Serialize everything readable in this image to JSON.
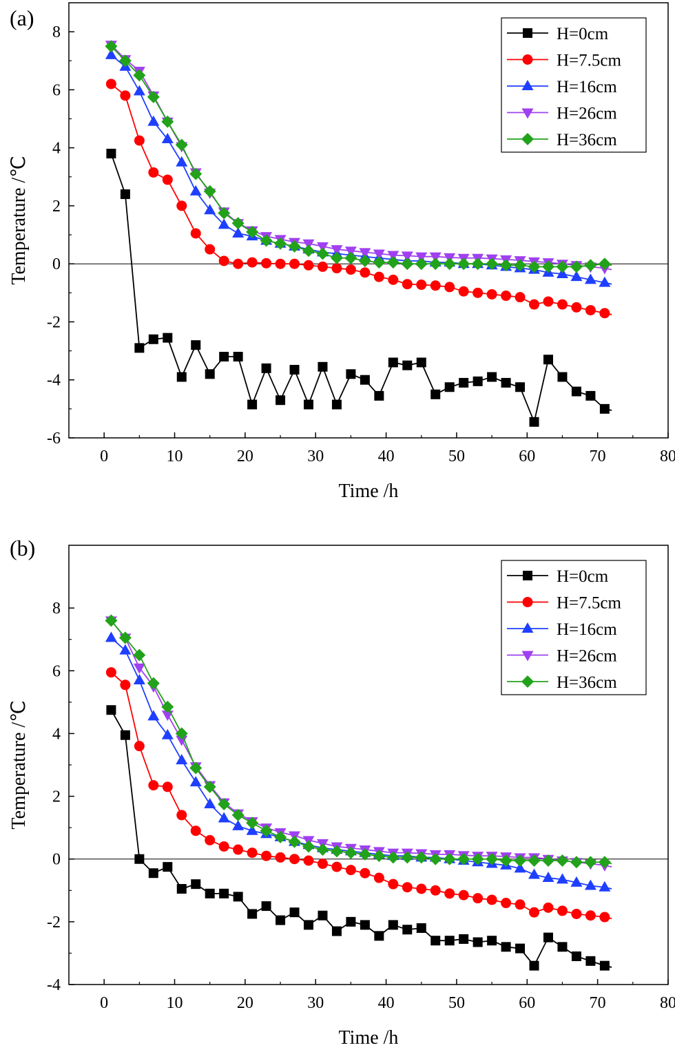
{
  "chart_data": [
    {
      "type": "line",
      "panel_label": "(a)",
      "xlabel": "Time /h",
      "ylabel": "Temperature /℃",
      "xlim": [
        -5,
        80
      ],
      "ylim": [
        -6,
        9
      ],
      "xticks": [
        0,
        10,
        20,
        30,
        40,
        50,
        60,
        70,
        80
      ],
      "yticks": [
        -6,
        -4,
        -2,
        0,
        2,
        4,
        6,
        8
      ],
      "zero_line": true,
      "legend_position": "top-right",
      "series": [
        {
          "name": "H=0cm",
          "color": "#000000",
          "marker": "square",
          "x": [
            1,
            3,
            5,
            7,
            9,
            11,
            13,
            15,
            17,
            19,
            21,
            23,
            25,
            27,
            29,
            31,
            33,
            35,
            37,
            39,
            41,
            43,
            45,
            47,
            49,
            51,
            53,
            55,
            57,
            59,
            61,
            63,
            65,
            67,
            69,
            71
          ],
          "y": [
            3.8,
            2.4,
            -2.9,
            -2.6,
            -2.55,
            -3.9,
            -2.8,
            -3.8,
            -3.2,
            -3.2,
            -4.85,
            -3.6,
            -4.7,
            -3.65,
            -4.85,
            -3.55,
            -4.85,
            -3.8,
            -4.0,
            -4.55,
            -3.4,
            -3.5,
            -3.4,
            -4.5,
            -4.25,
            -4.1,
            -4.05,
            -3.9,
            -4.1,
            -4.25,
            -5.45,
            -3.3,
            -3.9,
            -4.4,
            -4.55,
            -5.0
          ]
        },
        {
          "name": "H=7.5cm",
          "color": "#ff0000",
          "marker": "circle",
          "x": [
            1,
            3,
            5,
            7,
            9,
            11,
            13,
            15,
            17,
            19,
            21,
            23,
            25,
            27,
            29,
            31,
            33,
            35,
            37,
            39,
            41,
            43,
            45,
            47,
            49,
            51,
            53,
            55,
            57,
            59,
            61,
            63,
            65,
            67,
            69,
            71
          ],
          "y": [
            6.2,
            5.8,
            4.25,
            3.15,
            2.9,
            2.0,
            1.05,
            0.5,
            0.1,
            0.0,
            0.05,
            0.02,
            0.0,
            0.0,
            -0.05,
            -0.1,
            -0.15,
            -0.2,
            -0.3,
            -0.45,
            -0.55,
            -0.7,
            -0.72,
            -0.75,
            -0.8,
            -0.95,
            -1.0,
            -1.05,
            -1.1,
            -1.15,
            -1.4,
            -1.3,
            -1.4,
            -1.5,
            -1.6,
            -1.7
          ]
        },
        {
          "name": "H=16cm",
          "color": "#1f3fff",
          "marker": "triangle-up",
          "x": [
            1,
            3,
            5,
            7,
            9,
            11,
            13,
            15,
            17,
            19,
            21,
            23,
            25,
            27,
            29,
            31,
            33,
            35,
            37,
            39,
            41,
            43,
            45,
            47,
            49,
            51,
            53,
            55,
            57,
            59,
            61,
            63,
            65,
            67,
            69,
            71
          ],
          "y": [
            7.2,
            6.8,
            5.95,
            4.9,
            4.3,
            3.5,
            2.5,
            1.85,
            1.35,
            1.05,
            0.95,
            0.8,
            0.7,
            0.6,
            0.5,
            0.4,
            0.35,
            0.3,
            0.25,
            0.2,
            0.15,
            0.1,
            0.1,
            0.05,
            0.05,
            0.0,
            0.0,
            -0.05,
            -0.1,
            -0.15,
            -0.2,
            -0.3,
            -0.35,
            -0.45,
            -0.55,
            -0.65
          ]
        },
        {
          "name": "H=26cm",
          "color": "#a040f0",
          "marker": "triangle-down",
          "x": [
            1,
            3,
            5,
            7,
            9,
            11,
            13,
            15,
            17,
            19,
            21,
            23,
            25,
            27,
            29,
            31,
            33,
            35,
            37,
            39,
            41,
            43,
            45,
            47,
            49,
            51,
            53,
            55,
            57,
            59,
            61,
            63,
            65,
            67,
            69,
            71
          ],
          "y": [
            7.55,
            7.05,
            6.65,
            5.8,
            4.9,
            4.05,
            3.15,
            2.45,
            1.8,
            1.4,
            1.15,
            0.95,
            0.85,
            0.75,
            0.7,
            0.6,
            0.5,
            0.45,
            0.4,
            0.35,
            0.3,
            0.28,
            0.25,
            0.25,
            0.22,
            0.2,
            0.2,
            0.18,
            0.15,
            0.12,
            0.08,
            0.05,
            0.0,
            -0.05,
            -0.1,
            -0.15
          ]
        },
        {
          "name": "H=36cm",
          "color": "#22a21a",
          "marker": "diamond",
          "x": [
            1,
            3,
            5,
            7,
            9,
            11,
            13,
            15,
            17,
            19,
            21,
            23,
            25,
            27,
            29,
            31,
            33,
            35,
            37,
            39,
            41,
            43,
            45,
            47,
            49,
            51,
            53,
            55,
            57,
            59,
            61,
            63,
            65,
            67,
            69,
            71
          ],
          "y": [
            7.5,
            7.0,
            6.5,
            5.75,
            4.9,
            4.1,
            3.1,
            2.5,
            1.75,
            1.4,
            1.1,
            0.8,
            0.7,
            0.6,
            0.45,
            0.35,
            0.2,
            0.2,
            0.1,
            0.05,
            0.05,
            0.0,
            0.0,
            0.0,
            0.0,
            0.0,
            0.0,
            0.0,
            -0.05,
            -0.05,
            -0.1,
            -0.1,
            -0.1,
            -0.1,
            -0.05,
            0.0
          ]
        }
      ]
    },
    {
      "type": "line",
      "panel_label": "(b)",
      "xlabel": "Time /h",
      "ylabel": "Temperature /℃",
      "xlim": [
        -5,
        80
      ],
      "ylim": [
        -4,
        10
      ],
      "xticks": [
        0,
        10,
        20,
        30,
        40,
        50,
        60,
        70,
        80
      ],
      "yticks": [
        -4,
        -2,
        0,
        2,
        4,
        6,
        8
      ],
      "zero_line": true,
      "legend_position": "top-right",
      "series": [
        {
          "name": "H=0cm",
          "color": "#000000",
          "marker": "square",
          "x": [
            1,
            3,
            5,
            7,
            9,
            11,
            13,
            15,
            17,
            19,
            21,
            23,
            25,
            27,
            29,
            31,
            33,
            35,
            37,
            39,
            41,
            43,
            45,
            47,
            49,
            51,
            53,
            55,
            57,
            59,
            61,
            63,
            65,
            67,
            69,
            71
          ],
          "y": [
            4.75,
            3.95,
            0.0,
            -0.45,
            -0.25,
            -0.95,
            -0.8,
            -1.1,
            -1.1,
            -1.2,
            -1.75,
            -1.5,
            -1.95,
            -1.7,
            -2.1,
            -1.8,
            -2.3,
            -2.0,
            -2.1,
            -2.45,
            -2.1,
            -2.25,
            -2.2,
            -2.6,
            -2.6,
            -2.55,
            -2.65,
            -2.6,
            -2.8,
            -2.85,
            -3.4,
            -2.5,
            -2.8,
            -3.1,
            -3.25,
            -3.4
          ]
        },
        {
          "name": "H=7.5cm",
          "color": "#ff0000",
          "marker": "circle",
          "x": [
            1,
            3,
            5,
            7,
            9,
            11,
            13,
            15,
            17,
            19,
            21,
            23,
            25,
            27,
            29,
            31,
            33,
            35,
            37,
            39,
            41,
            43,
            45,
            47,
            49,
            51,
            53,
            55,
            57,
            59,
            61,
            63,
            65,
            67,
            69,
            71
          ],
          "y": [
            5.95,
            5.55,
            3.6,
            2.35,
            2.3,
            1.4,
            0.9,
            0.6,
            0.4,
            0.3,
            0.2,
            0.1,
            0.05,
            0.0,
            -0.05,
            -0.15,
            -0.25,
            -0.35,
            -0.45,
            -0.6,
            -0.8,
            -0.9,
            -0.95,
            -1.0,
            -1.1,
            -1.15,
            -1.25,
            -1.3,
            -1.4,
            -1.45,
            -1.7,
            -1.55,
            -1.65,
            -1.75,
            -1.8,
            -1.85
          ]
        },
        {
          "name": "H=16cm",
          "color": "#1f3fff",
          "marker": "triangle-up",
          "x": [
            1,
            3,
            5,
            7,
            9,
            11,
            13,
            15,
            17,
            19,
            21,
            23,
            25,
            27,
            29,
            31,
            33,
            35,
            37,
            39,
            41,
            43,
            45,
            47,
            49,
            51,
            53,
            55,
            57,
            59,
            61,
            63,
            65,
            67,
            69,
            71
          ],
          "y": [
            7.05,
            6.65,
            5.7,
            4.55,
            3.95,
            3.15,
            2.45,
            1.75,
            1.3,
            1.05,
            0.9,
            0.8,
            0.7,
            0.55,
            0.45,
            0.35,
            0.3,
            0.25,
            0.2,
            0.15,
            0.1,
            0.1,
            0.05,
            0.05,
            0.0,
            -0.05,
            -0.1,
            -0.15,
            -0.2,
            -0.3,
            -0.5,
            -0.6,
            -0.65,
            -0.75,
            -0.85,
            -0.9
          ]
        },
        {
          "name": "H=26cm",
          "color": "#a040f0",
          "marker": "triangle-down",
          "x": [
            1,
            3,
            5,
            7,
            9,
            11,
            13,
            15,
            17,
            19,
            21,
            23,
            25,
            27,
            29,
            31,
            33,
            35,
            37,
            39,
            41,
            43,
            45,
            47,
            49,
            51,
            53,
            55,
            57,
            59,
            61,
            63,
            65,
            67,
            69,
            71
          ],
          "y": [
            7.6,
            7.05,
            6.1,
            5.5,
            4.6,
            3.8,
            2.95,
            2.35,
            1.8,
            1.45,
            1.2,
            1.0,
            0.85,
            0.75,
            0.6,
            0.5,
            0.4,
            0.35,
            0.3,
            0.25,
            0.2,
            0.2,
            0.18,
            0.15,
            0.15,
            0.12,
            0.1,
            0.1,
            0.08,
            0.05,
            0.05,
            0.0,
            -0.05,
            -0.1,
            -0.15,
            -0.2
          ]
        },
        {
          "name": "H=36cm",
          "color": "#22a21a",
          "marker": "diamond",
          "x": [
            1,
            3,
            5,
            7,
            9,
            11,
            13,
            15,
            17,
            19,
            21,
            23,
            25,
            27,
            29,
            31,
            33,
            35,
            37,
            39,
            41,
            43,
            45,
            47,
            49,
            51,
            53,
            55,
            57,
            59,
            61,
            63,
            65,
            67,
            69,
            71
          ],
          "y": [
            7.6,
            7.05,
            6.5,
            5.6,
            4.85,
            4.0,
            2.9,
            2.3,
            1.75,
            1.4,
            1.15,
            0.9,
            0.7,
            0.55,
            0.4,
            0.3,
            0.25,
            0.2,
            0.15,
            0.1,
            0.05,
            0.05,
            0.05,
            0.0,
            0.0,
            0.0,
            0.0,
            0.0,
            -0.05,
            -0.05,
            -0.05,
            -0.05,
            -0.05,
            -0.1,
            -0.1,
            -0.1
          ]
        }
      ]
    }
  ]
}
